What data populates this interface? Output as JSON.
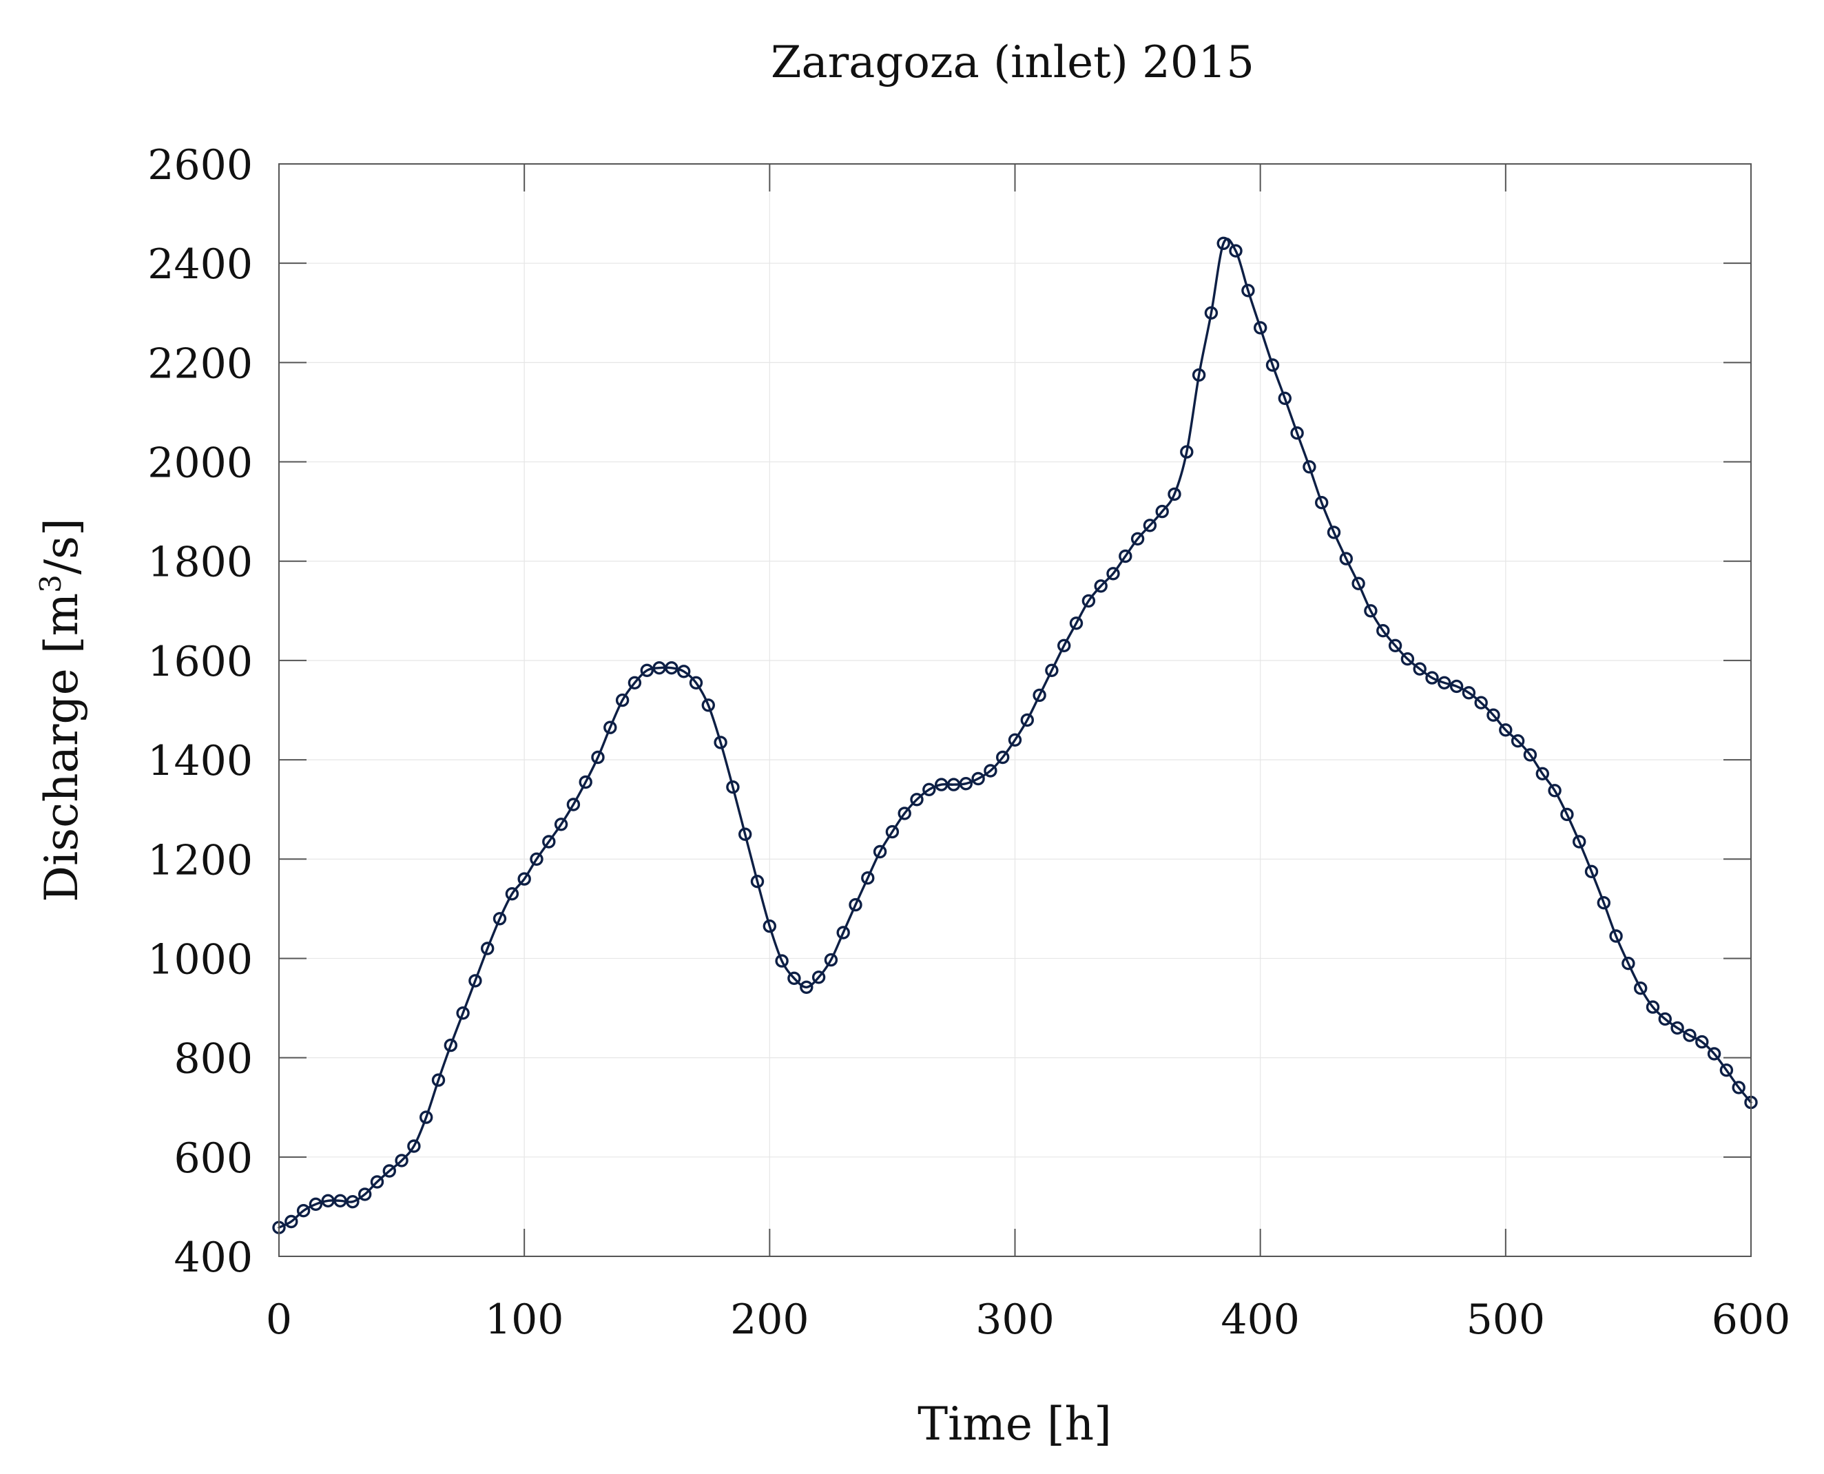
{
  "chart_data": {
    "type": "line",
    "title": "Zaragoza (inlet) 2015",
    "xlabel": "Time [h]",
    "ylabel": "Discharge [m³/s]",
    "ylabel_main": "Discharge [m",
    "ylabel_sup": "3",
    "ylabel_tail": "/s]",
    "xlim": [
      0,
      600
    ],
    "ylim": [
      400,
      2600
    ],
    "xticks": [
      0,
      100,
      200,
      300,
      400,
      500,
      600
    ],
    "yticks": [
      400,
      600,
      800,
      1000,
      1200,
      1400,
      1600,
      1800,
      2000,
      2200,
      2400,
      2600
    ],
    "grid": true,
    "legend": "none",
    "color": "#0d1f45",
    "series": [
      {
        "name": "Zaragoza (inlet) 2015",
        "x": [
          0,
          5,
          10,
          15,
          20,
          25,
          30,
          35,
          40,
          45,
          50,
          55,
          60,
          65,
          70,
          75,
          80,
          85,
          90,
          95,
          100,
          105,
          110,
          115,
          120,
          125,
          130,
          135,
          140,
          145,
          150,
          155,
          160,
          165,
          170,
          175,
          180,
          185,
          190,
          195,
          200,
          205,
          210,
          215,
          220,
          225,
          230,
          235,
          240,
          245,
          250,
          255,
          260,
          265,
          270,
          275,
          280,
          285,
          290,
          295,
          300,
          305,
          310,
          315,
          320,
          325,
          330,
          335,
          340,
          345,
          350,
          355,
          360,
          365,
          370,
          375,
          380,
          385,
          390,
          395,
          400,
          405,
          410,
          415,
          420,
          425,
          430,
          435,
          440,
          445,
          450,
          455,
          460,
          465,
          470,
          475,
          480,
          485,
          490,
          495,
          500,
          505,
          510,
          515,
          520,
          525,
          530,
          535,
          540,
          545,
          550,
          555,
          560,
          565,
          570,
          575,
          580,
          585,
          590,
          595,
          600
        ],
        "values": [
          458,
          470,
          492,
          505,
          512,
          512,
          510,
          525,
          550,
          572,
          593,
          622,
          680,
          755,
          825,
          890,
          955,
          1020,
          1080,
          1130,
          1160,
          1200,
          1235,
          1270,
          1310,
          1355,
          1405,
          1465,
          1520,
          1555,
          1580,
          1585,
          1585,
          1578,
          1555,
          1510,
          1435,
          1345,
          1250,
          1155,
          1065,
          995,
          960,
          942,
          962,
          997,
          1052,
          1108,
          1162,
          1215,
          1255,
          1292,
          1320,
          1340,
          1350,
          1350,
          1352,
          1362,
          1378,
          1405,
          1440,
          1480,
          1530,
          1580,
          1630,
          1675,
          1720,
          1750,
          1775,
          1810,
          1845,
          1872,
          1900,
          1935,
          2020,
          2175,
          2300,
          2440,
          2425,
          2345,
          2270,
          2195,
          2128,
          2058,
          1990,
          1918,
          1858,
          1805,
          1755,
          1700,
          1660,
          1630,
          1603,
          1583,
          1565,
          1555,
          1548,
          1535,
          1515,
          1490,
          1460,
          1438,
          1410,
          1372,
          1338,
          1290,
          1235,
          1175,
          1112,
          1045,
          990,
          940,
          902,
          878,
          860,
          845,
          832,
          808,
          775,
          740,
          710
        ]
      }
    ]
  }
}
